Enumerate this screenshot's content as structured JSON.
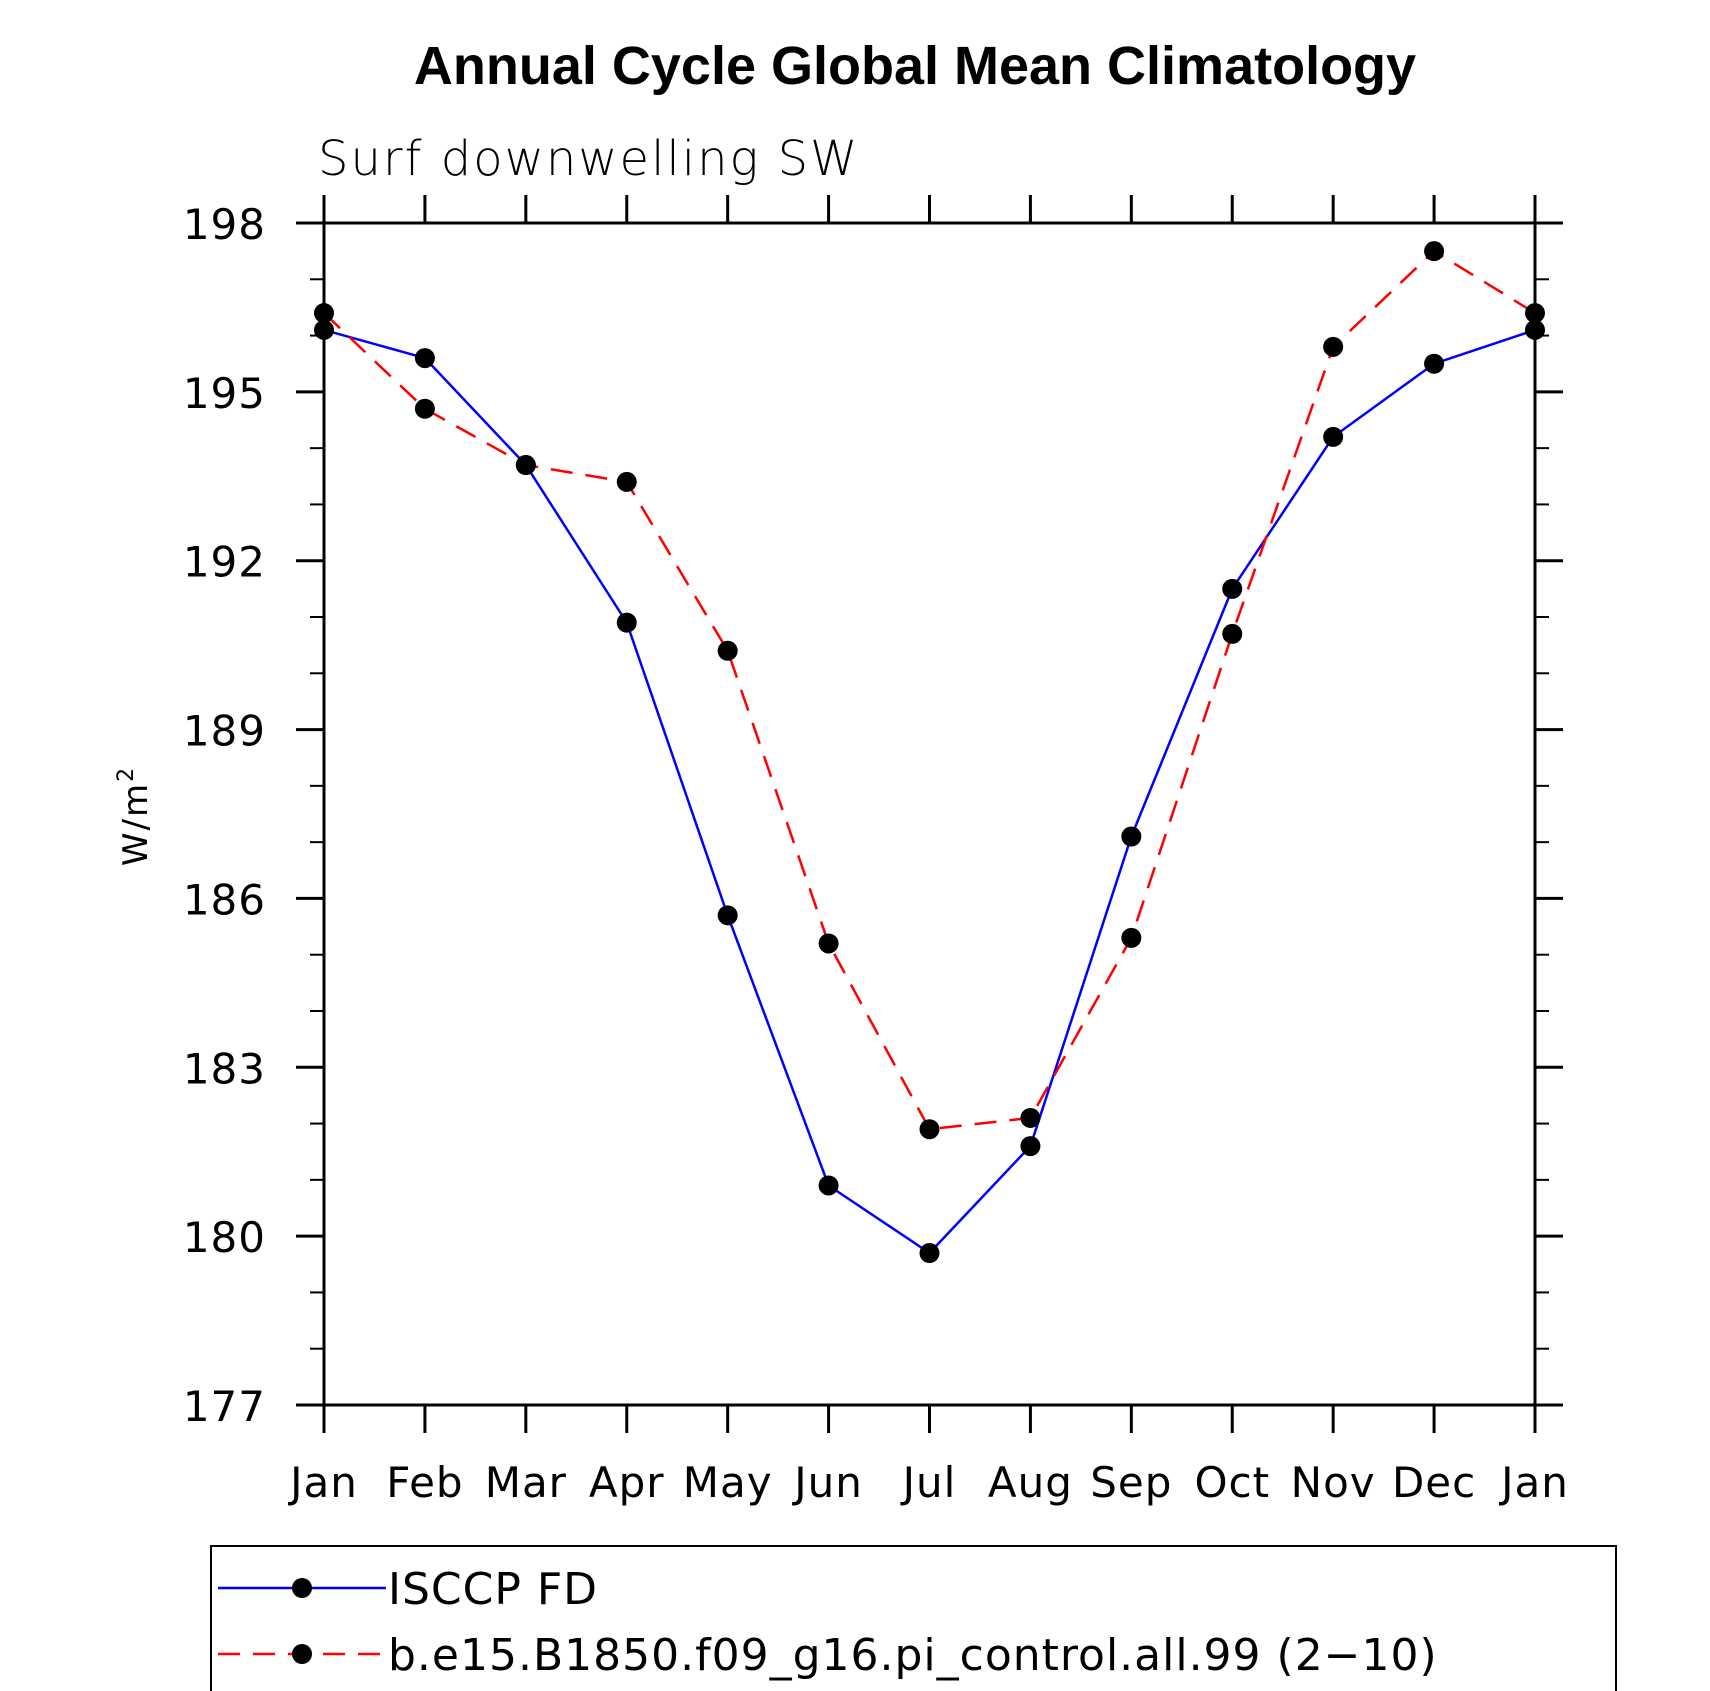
{
  "chart_data": {
    "type": "line",
    "title": "Annual Cycle Global Mean Climatology",
    "subtitle": "Surf downwelling SW",
    "ylabel": "W/m",
    "ylabel_superscript": "2",
    "categories": [
      "Jan",
      "Feb",
      "Mar",
      "Apr",
      "May",
      "Jun",
      "Jul",
      "Aug",
      "Sep",
      "Oct",
      "Nov",
      "Dec",
      "Jan"
    ],
    "ylim": [
      177,
      198
    ],
    "yticks": [
      "198",
      "195",
      "192",
      "189",
      "186",
      "183",
      "180",
      "177"
    ],
    "ytick_values": [
      198,
      195,
      192,
      189,
      186,
      183,
      180,
      177
    ],
    "grid": false,
    "legend_position": "bottom",
    "series": [
      {
        "name": "ISCCP FD",
        "color": "#0000ff",
        "line_style": "solid",
        "marker": "filled-circle",
        "values": [
          196.1,
          195.6,
          193.7,
          190.9,
          185.7,
          180.9,
          179.7,
          181.6,
          187.1,
          191.5,
          194.2,
          195.5,
          196.1
        ]
      },
      {
        "name": "b.e15.B1850.f09_g16.pi_control.all.99 (2−10)",
        "color": "#ff0000",
        "line_style": "dashed",
        "marker": "filled-circle",
        "values": [
          196.4,
          194.7,
          193.7,
          193.4,
          190.4,
          185.2,
          181.9,
          182.1,
          185.3,
          190.7,
          195.8,
          197.5,
          196.4
        ]
      }
    ]
  }
}
